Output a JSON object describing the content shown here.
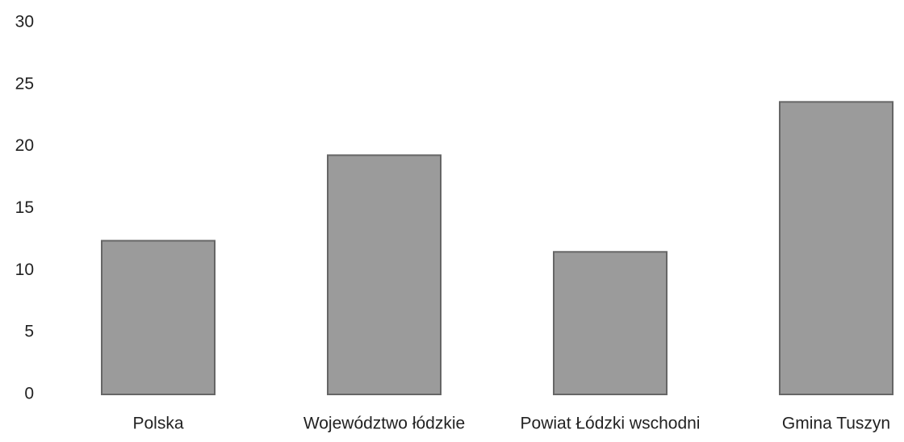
{
  "chart_data": {
    "type": "bar",
    "categories": [
      "Polska",
      "Województwo łódzkie",
      "Powiat Łódzki wschodni",
      "Gmina Tuszyn"
    ],
    "values": [
      12.4,
      19.3,
      11.5,
      23.6
    ],
    "color": "#9b9b9b",
    "ylim": [
      0,
      30
    ],
    "yticks": [
      0,
      5,
      10,
      15,
      20,
      25,
      30
    ],
    "grid": false
  }
}
